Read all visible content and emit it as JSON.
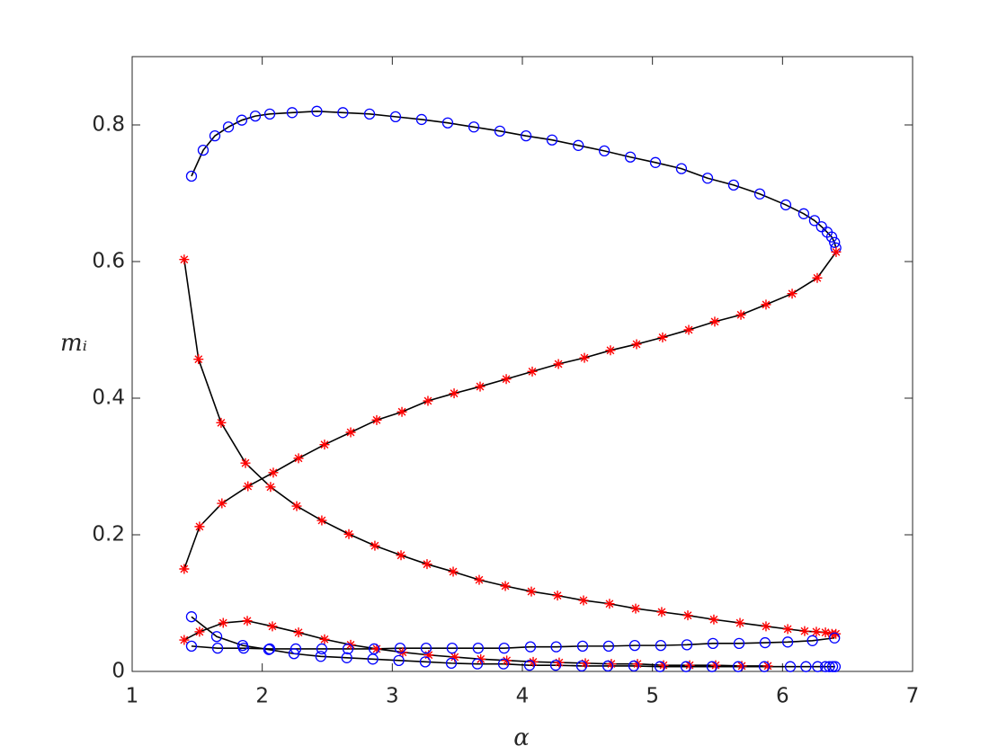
{
  "chart_data": {
    "type": "scatter",
    "x_label": "α",
    "y_label": "mᵢ",
    "xlim": [
      1,
      7
    ],
    "ylim": [
      0,
      0.9
    ],
    "xticks": [
      1,
      2,
      3,
      4,
      5,
      6,
      7
    ],
    "yticks": [
      0,
      0.2,
      0.4,
      0.6,
      0.8
    ],
    "line_color": "#000000",
    "series": [
      {
        "marker": "o",
        "color": "#0000ff",
        "x": [
          1.456,
          1.546,
          1.636,
          1.74,
          1.843,
          1.947,
          2.058,
          2.23,
          2.42,
          2.62,
          2.825,
          3.025,
          3.225,
          3.426,
          3.627,
          3.827,
          4.028,
          4.228,
          4.43,
          4.63,
          4.83,
          5.023,
          5.223,
          5.424,
          5.624,
          5.825,
          6.025,
          6.163,
          6.246,
          6.3,
          6.343,
          6.378,
          6.4,
          6.41
        ],
        "values": [
          0.725,
          0.763,
          0.784,
          0.797,
          0.807,
          0.813,
          0.816,
          0.818,
          0.82,
          0.818,
          0.816,
          0.812,
          0.808,
          0.803,
          0.797,
          0.791,
          0.784,
          0.778,
          0.77,
          0.762,
          0.753,
          0.745,
          0.736,
          0.722,
          0.712,
          0.699,
          0.683,
          0.67,
          0.66,
          0.651,
          0.643,
          0.636,
          0.628,
          0.62
        ]
      },
      {
        "marker": "*",
        "color": "#ff0000",
        "x": [
          1.4,
          1.518,
          1.69,
          1.89,
          2.085,
          2.279,
          2.479,
          2.68,
          2.88,
          3.074,
          3.274,
          3.475,
          3.675,
          3.876,
          4.076,
          4.277,
          4.477,
          4.677,
          4.878,
          5.078,
          5.279,
          5.479,
          5.68,
          5.873,
          6.074,
          6.267,
          6.412
        ],
        "values": [
          0.15,
          0.212,
          0.246,
          0.271,
          0.291,
          0.312,
          0.332,
          0.35,
          0.368,
          0.38,
          0.396,
          0.407,
          0.417,
          0.428,
          0.439,
          0.45,
          0.459,
          0.47,
          0.479,
          0.489,
          0.5,
          0.512,
          0.522,
          0.537,
          0.553,
          0.576,
          0.614
        ]
      },
      {
        "marker": "*",
        "color": "#ff0000",
        "x": [
          1.4,
          1.51,
          1.684,
          1.871,
          2.064,
          2.265,
          2.458,
          2.666,
          2.866,
          3.067,
          3.267,
          3.468,
          3.668,
          3.869,
          4.069,
          4.27,
          4.47,
          4.67,
          4.871,
          5.071,
          5.272,
          5.472,
          5.673,
          5.873,
          6.04,
          6.17,
          6.26,
          6.33,
          6.38,
          6.41
        ],
        "values": [
          0.603,
          0.457,
          0.364,
          0.305,
          0.27,
          0.242,
          0.221,
          0.201,
          0.184,
          0.17,
          0.157,
          0.146,
          0.134,
          0.125,
          0.117,
          0.111,
          0.104,
          0.099,
          0.092,
          0.087,
          0.082,
          0.076,
          0.071,
          0.066,
          0.062,
          0.059,
          0.058,
          0.057,
          0.055,
          0.055
        ]
      },
      {
        "marker": "*",
        "color": "#ff0000",
        "x": [
          1.4,
          1.518,
          1.7,
          1.885,
          2.078,
          2.279,
          2.479,
          2.68,
          2.88,
          3.08,
          3.28,
          3.48,
          3.68,
          3.88,
          4.083,
          4.283,
          4.484,
          4.684,
          4.885,
          5.085,
          5.286,
          5.486,
          5.687,
          5.887
        ],
        "values": [
          0.046,
          0.058,
          0.071,
          0.074,
          0.066,
          0.057,
          0.047,
          0.039,
          0.033,
          0.028,
          0.024,
          0.021,
          0.018,
          0.016,
          0.014,
          0.013,
          0.012,
          0.011,
          0.011,
          0.009,
          0.009,
          0.009,
          0.008,
          0.008
        ]
      },
      {
        "marker": "o",
        "color": "#0000ff",
        "x": [
          1.456,
          1.65,
          1.85,
          2.05,
          2.244,
          2.45,
          2.65,
          2.85,
          3.05,
          3.253,
          3.454,
          3.654,
          3.855,
          4.055,
          4.256,
          4.456,
          4.657,
          4.857,
          5.058,
          5.258,
          5.458,
          5.659,
          5.86,
          6.06,
          6.18,
          6.27,
          6.33,
          6.36,
          6.385,
          6.405
        ],
        "values": [
          0.08,
          0.051,
          0.038,
          0.032,
          0.026,
          0.022,
          0.02,
          0.018,
          0.016,
          0.014,
          0.012,
          0.011,
          0.011,
          0.009,
          0.009,
          0.008,
          0.008,
          0.008,
          0.007,
          0.007,
          0.007,
          0.007,
          0.007,
          0.007,
          0.007,
          0.007,
          0.007,
          0.007,
          0.007,
          0.007
        ]
      },
      {
        "marker": "o",
        "color": "#0000ff",
        "x": [
          1.456,
          1.657,
          1.857,
          2.058,
          2.258,
          2.458,
          2.659,
          2.86,
          3.06,
          3.26,
          3.46,
          3.66,
          3.86,
          4.062,
          4.26,
          4.463,
          4.663,
          4.864,
          5.064,
          5.265,
          5.465,
          5.666,
          5.866,
          6.04,
          6.23,
          6.4
        ],
        "values": [
          0.037,
          0.034,
          0.034,
          0.033,
          0.033,
          0.033,
          0.033,
          0.033,
          0.034,
          0.034,
          0.034,
          0.034,
          0.034,
          0.036,
          0.036,
          0.037,
          0.037,
          0.038,
          0.038,
          0.039,
          0.041,
          0.041,
          0.042,
          0.043,
          0.045,
          0.049
        ]
      }
    ]
  }
}
